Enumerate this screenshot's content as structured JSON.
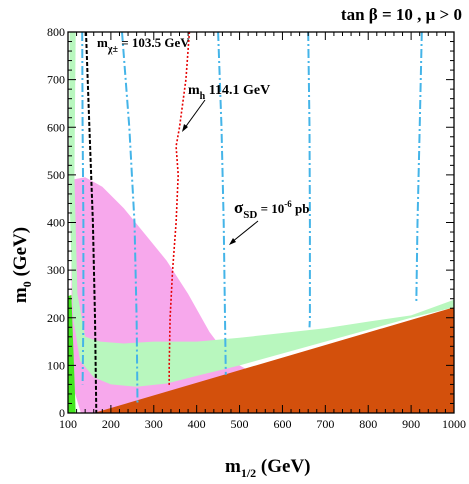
{
  "chart_data": {
    "type": "area",
    "title": "tan β = 10 ,  μ > 0",
    "xlabel": "m1/2 (GeV)",
    "ylabel": "m0 (GeV)",
    "xlim": [
      100,
      1000
    ],
    "ylim": [
      0,
      800
    ],
    "xticks": [
      100,
      200,
      300,
      400,
      500,
      600,
      700,
      800,
      900,
      1000
    ],
    "yticks": [
      0,
      100,
      200,
      300,
      400,
      500,
      600,
      700,
      800
    ],
    "grid": false,
    "colors": {
      "orange": "#d3500c",
      "pink": "#f7a8ec",
      "lightgreen": "#b8f7be",
      "green": "#44e620",
      "chargino": "#000000",
      "higgs": "#e60000",
      "sigma": "#44b4e8"
    },
    "series": [
      {
        "name": "orange",
        "values": [
          [
            160,
            0
          ],
          [
            1000,
            222
          ],
          [
            1000,
            0
          ]
        ]
      },
      {
        "name": "pink",
        "values": [
          [
            110,
            490
          ],
          [
            140,
            495
          ],
          [
            180,
            475
          ],
          [
            230,
            430
          ],
          [
            280,
            375
          ],
          [
            330,
            320
          ],
          [
            380,
            250
          ],
          [
            430,
            170
          ],
          [
            480,
            110
          ],
          [
            540,
            80
          ],
          [
            480,
            40
          ],
          [
            420,
            20
          ],
          [
            380,
            20
          ],
          [
            340,
            25
          ],
          [
            300,
            20
          ],
          [
            240,
            10
          ],
          [
            200,
            0
          ],
          [
            130,
            0
          ],
          [
            110,
            60
          ],
          [
            108,
            300
          ]
        ]
      },
      {
        "name": "lightgreen",
        "values": [
          [
            104,
            800
          ],
          [
            118,
            800
          ],
          [
            115,
            500
          ],
          [
            122,
            250
          ],
          [
            140,
            160
          ],
          [
            175,
            150
          ],
          [
            230,
            146
          ],
          [
            300,
            150
          ],
          [
            400,
            150
          ],
          [
            500,
            158
          ],
          [
            600,
            168
          ],
          [
            700,
            178
          ],
          [
            800,
            192
          ],
          [
            900,
            205
          ],
          [
            1000,
            238
          ],
          [
            1000,
            222
          ],
          [
            900,
            200
          ],
          [
            800,
            175
          ],
          [
            700,
            150
          ],
          [
            600,
            125
          ],
          [
            500,
            100
          ],
          [
            400,
            78
          ],
          [
            330,
            62
          ],
          [
            260,
            55
          ],
          [
            200,
            60
          ],
          [
            160,
            75
          ],
          [
            128,
            110
          ],
          [
            112,
            200
          ],
          [
            102,
            500
          ]
        ]
      },
      {
        "name": "green",
        "values": [
          [
            100,
            0
          ],
          [
            100,
            245
          ],
          [
            108,
            248
          ],
          [
            112,
            150
          ],
          [
            118,
            0
          ]
        ]
      },
      {
        "name": "chargino",
        "values": [
          [
            142,
            800
          ],
          [
            150,
            600
          ],
          [
            158,
            400
          ],
          [
            163,
            200
          ],
          [
            166,
            0
          ]
        ]
      },
      {
        "name": "higgs",
        "values": [
          [
            383,
            800
          ],
          [
            375,
            700
          ],
          [
            360,
            600
          ],
          [
            352,
            560
          ],
          [
            357,
            500
          ],
          [
            352,
            400
          ],
          [
            344,
            300
          ],
          [
            338,
            200
          ],
          [
            336,
            100
          ],
          [
            336,
            55
          ]
        ]
      },
      {
        "name": "sigma_left",
        "values": [
          [
            133,
            800
          ],
          [
            134,
            600
          ],
          [
            136,
            400
          ],
          [
            136,
            200
          ],
          [
            134,
            60
          ]
        ]
      },
      {
        "name": "sigma_260",
        "values": [
          [
            226,
            800
          ],
          [
            243,
            600
          ],
          [
            255,
            400
          ],
          [
            260,
            200
          ],
          [
            262,
            20
          ]
        ]
      },
      {
        "name": "sigma_470",
        "values": [
          [
            450,
            800
          ],
          [
            458,
            600
          ],
          [
            463,
            400
          ],
          [
            466,
            200
          ],
          [
            468,
            80
          ]
        ]
      },
      {
        "name": "sigma_670",
        "values": [
          [
            660,
            800
          ],
          [
            663,
            600
          ],
          [
            664,
            400
          ],
          [
            664,
            200
          ],
          [
            663,
            180
          ]
        ]
      },
      {
        "name": "sigma_910",
        "values": [
          [
            925,
            800
          ],
          [
            920,
            600
          ],
          [
            915,
            400
          ],
          [
            912,
            230
          ]
        ]
      }
    ],
    "annotations": {
      "chargino": {
        "base": "m",
        "sub": "χ±",
        "text": "= 103.5 GeV"
      },
      "higgs": {
        "base": "m",
        "sub": "h",
        "text": "114.1 GeV"
      },
      "sigma": {
        "base": "σ",
        "sub": "SD",
        "text": "= 10",
        "sup": "-6",
        "unit": "pb"
      }
    }
  }
}
